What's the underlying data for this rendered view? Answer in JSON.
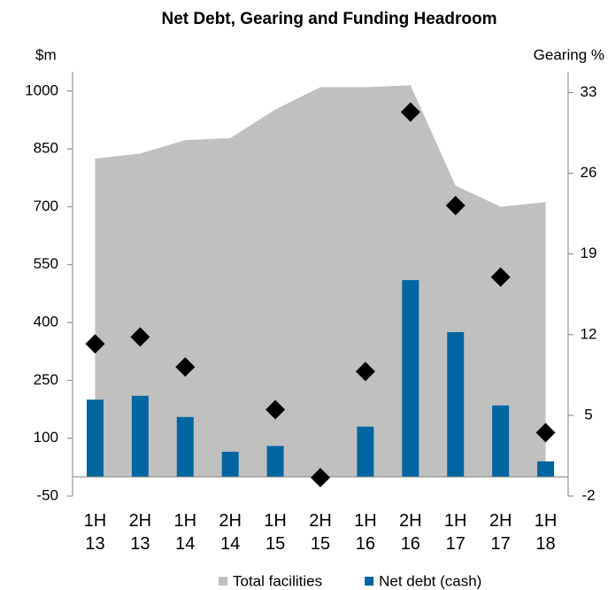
{
  "chart_data": {
    "type": "combo",
    "title": "Net Debt, Gearing and Funding Headroom",
    "y_label": "$m",
    "y2_label": "Gearing %",
    "categories": [
      "1H 13",
      "2H 13",
      "1H 14",
      "2H 14",
      "1H 15",
      "2H 15",
      "1H 16",
      "2H 16",
      "1H 17",
      "2H 17",
      "1H 18"
    ],
    "series": [
      {
        "name": "Total facilities",
        "type": "area",
        "color": "#c0c0c0",
        "values": [
          825,
          838,
          873,
          878,
          952,
          1010,
          1010,
          1015,
          755,
          700,
          712
        ]
      },
      {
        "name": "Net debt (cash)",
        "type": "bar",
        "color": "#0066a1",
        "values": [
          200,
          210,
          155,
          65,
          80,
          0,
          130,
          510,
          375,
          185,
          40
        ]
      },
      {
        "type": "scatter",
        "axis": "y2",
        "color": "#000000",
        "values": [
          11.2,
          11.8,
          9.2,
          null,
          5.5,
          -0.4,
          8.8,
          31.3,
          23.2,
          17,
          3.5
        ]
      }
    ],
    "ylim": [
      -50,
      1050
    ],
    "yticks": [
      -50,
      100,
      250,
      400,
      550,
      700,
      850,
      1000
    ],
    "y2lim": [
      -2,
      34.8
    ],
    "y2ticks": [
      -2,
      5,
      12,
      19,
      26,
      33
    ],
    "legend": "bottom"
  }
}
